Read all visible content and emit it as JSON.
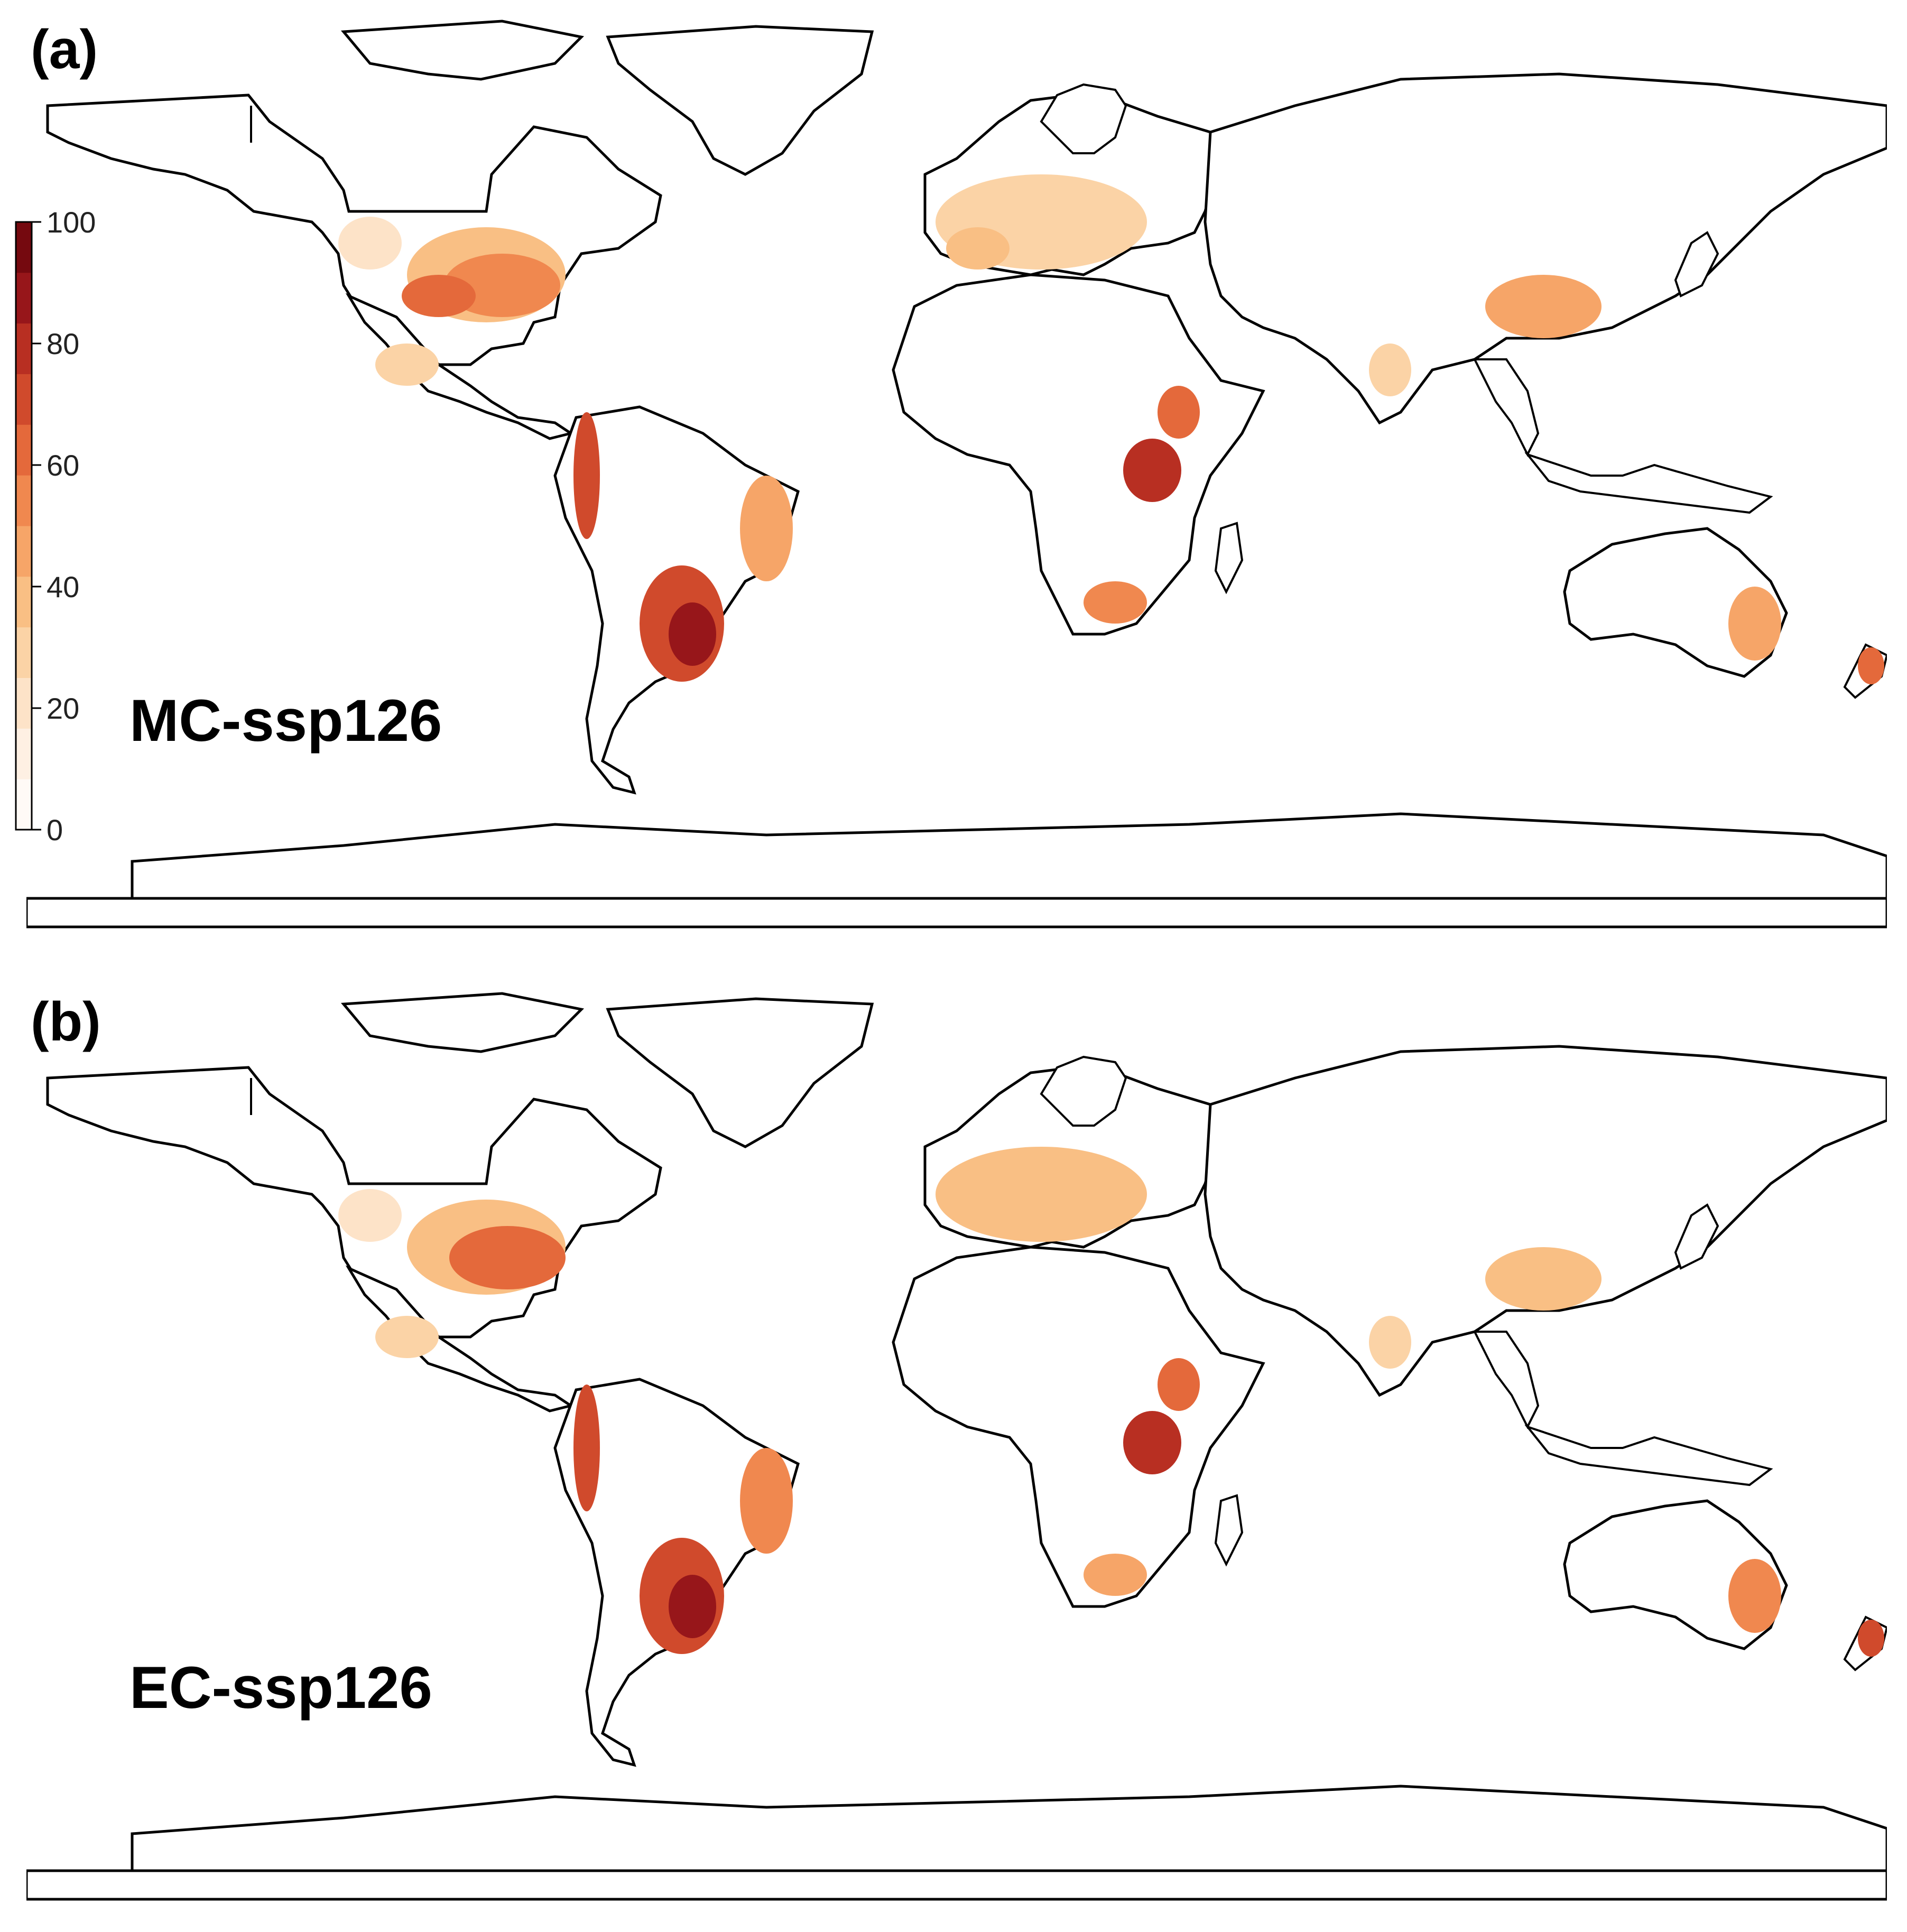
{
  "figure": {
    "panels": [
      {
        "id": "a",
        "label": "(a)",
        "scenario": "MC-ssp126"
      },
      {
        "id": "b",
        "label": "(b)",
        "scenario": "EC-ssp126"
      }
    ]
  },
  "legend": {
    "min": 0,
    "max": 100,
    "ticks": [
      "100",
      "80",
      "60",
      "40",
      "20",
      "0"
    ],
    "tick_values": [
      100,
      80,
      60,
      40,
      20,
      0
    ],
    "colors": [
      "#fffaf6",
      "#fef0e3",
      "#fde3c8",
      "#fbd3a6",
      "#f9bf84",
      "#f6a568",
      "#f0884f",
      "#e4693b",
      "#d04a2c",
      "#b82f22",
      "#97161a",
      "#75090f"
    ]
  },
  "colors": {
    "land_border": "#000000",
    "background": "#ffffff",
    "low": "#fde3c8",
    "mid": "#f0884f",
    "high": "#b82f22",
    "very_high": "#75090f"
  }
}
